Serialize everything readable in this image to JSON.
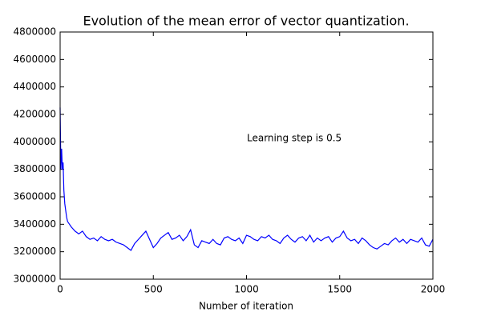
{
  "chart_data": {
    "type": "line",
    "title": "Evolution of the mean error of vector quantization.",
    "xlabel": "Number of iteration",
    "annotation": "Learning step is 0.5",
    "xlim": [
      0,
      2000
    ],
    "xticks": [
      0,
      500,
      1000,
      1500,
      2000
    ],
    "ylim": [
      3000000,
      4800000
    ],
    "yticks": [
      3000000,
      3200000,
      3400000,
      3600000,
      3800000,
      4000000,
      4200000,
      4400000,
      4600000,
      4800000
    ],
    "grid": false,
    "color": "#0000ff",
    "x": [
      0,
      4,
      8,
      12,
      16,
      20,
      25,
      30,
      35,
      40,
      50,
      60,
      80,
      100,
      120,
      140,
      160,
      180,
      200,
      220,
      240,
      260,
      280,
      300,
      320,
      340,
      360,
      380,
      400,
      420,
      440,
      460,
      480,
      500,
      520,
      540,
      560,
      580,
      600,
      620,
      640,
      660,
      680,
      700,
      720,
      740,
      760,
      780,
      800,
      820,
      840,
      860,
      880,
      900,
      920,
      940,
      960,
      980,
      1000,
      1020,
      1040,
      1060,
      1080,
      1100,
      1120,
      1140,
      1160,
      1180,
      1200,
      1220,
      1240,
      1260,
      1280,
      1300,
      1320,
      1340,
      1360,
      1380,
      1400,
      1420,
      1440,
      1460,
      1480,
      1500,
      1520,
      1540,
      1560,
      1580,
      1600,
      1620,
      1640,
      1660,
      1680,
      1700,
      1720,
      1740,
      1760,
      1780,
      1800,
      1820,
      1840,
      1860,
      1880,
      1900,
      1920,
      1940,
      1960,
      1980,
      2000
    ],
    "values": [
      4250000,
      3800000,
      3950000,
      3800000,
      3850000,
      3650000,
      3550000,
      3500000,
      3450000,
      3420000,
      3400000,
      3380000,
      3350000,
      3330000,
      3350000,
      3310000,
      3290000,
      3300000,
      3280000,
      3310000,
      3290000,
      3280000,
      3290000,
      3270000,
      3260000,
      3250000,
      3230000,
      3210000,
      3260000,
      3290000,
      3320000,
      3350000,
      3290000,
      3230000,
      3260000,
      3300000,
      3320000,
      3340000,
      3290000,
      3300000,
      3320000,
      3280000,
      3310000,
      3360000,
      3250000,
      3230000,
      3280000,
      3270000,
      3260000,
      3290000,
      3260000,
      3250000,
      3300000,
      3310000,
      3290000,
      3280000,
      3300000,
      3260000,
      3320000,
      3310000,
      3290000,
      3280000,
      3310000,
      3300000,
      3320000,
      3290000,
      3280000,
      3260000,
      3300000,
      3320000,
      3290000,
      3270000,
      3300000,
      3310000,
      3280000,
      3320000,
      3270000,
      3300000,
      3280000,
      3300000,
      3310000,
      3270000,
      3300000,
      3310000,
      3350000,
      3300000,
      3280000,
      3290000,
      3260000,
      3300000,
      3280000,
      3250000,
      3230000,
      3220000,
      3240000,
      3260000,
      3250000,
      3280000,
      3300000,
      3270000,
      3290000,
      3260000,
      3290000,
      3280000,
      3270000,
      3300000,
      3250000,
      3240000,
      3290000
    ]
  }
}
